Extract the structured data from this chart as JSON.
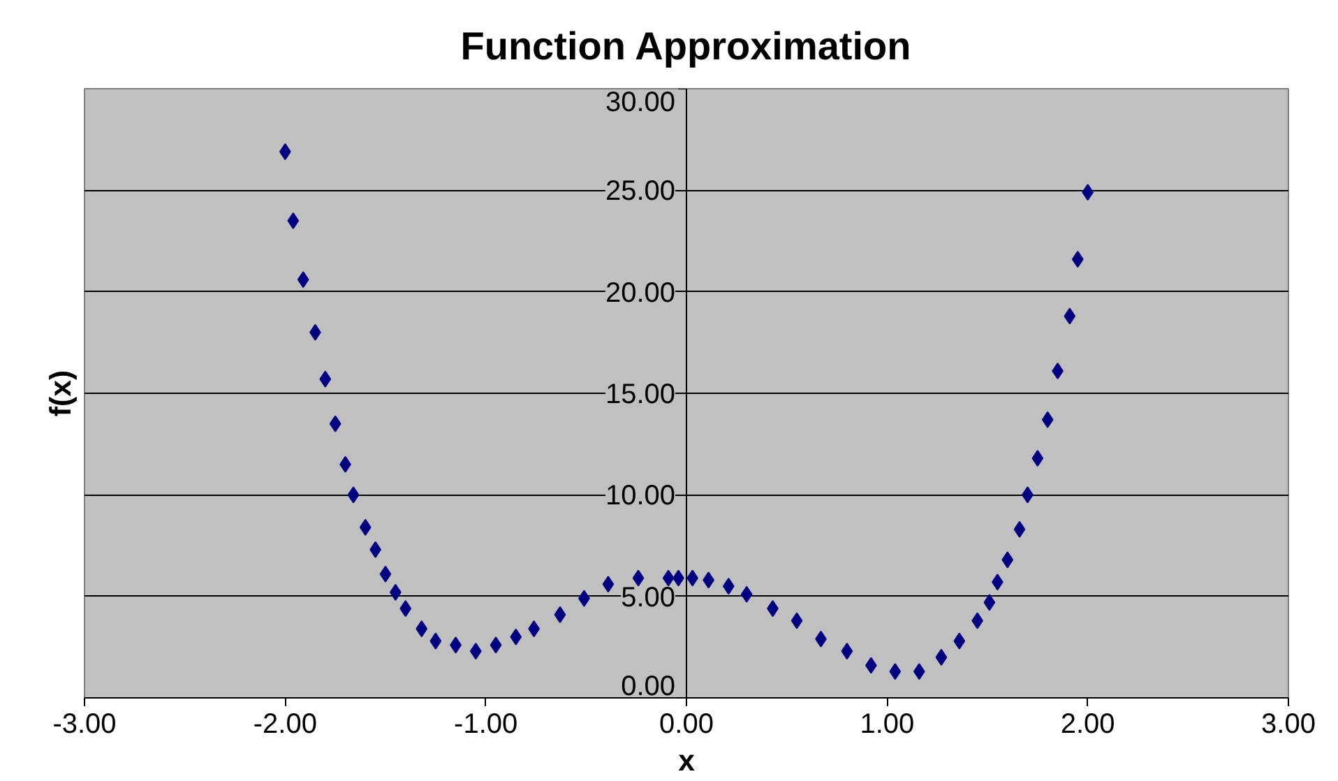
{
  "chart_data": {
    "type": "scatter",
    "title": "Function Approximation",
    "xlabel": "x",
    "ylabel": "f(x)",
    "x": [
      -2.0,
      -1.96,
      -1.91,
      -1.85,
      -1.8,
      -1.75,
      -1.7,
      -1.66,
      -1.6,
      -1.55,
      -1.5,
      -1.45,
      -1.4,
      -1.32,
      -1.25,
      -1.15,
      -1.05,
      -0.95,
      -0.85,
      -0.76,
      -0.63,
      -0.51,
      -0.39,
      -0.24,
      -0.09,
      -0.04,
      0.03,
      0.11,
      0.21,
      0.3,
      0.43,
      0.55,
      0.67,
      0.8,
      0.92,
      1.04,
      1.16,
      1.27,
      1.36,
      1.45,
      1.51,
      1.55,
      1.6,
      1.66,
      1.7,
      1.75,
      1.8,
      1.85,
      1.91,
      1.95,
      2.0
    ],
    "series": [
      {
        "color": "#000080",
        "values": [
          26.9,
          23.5,
          20.6,
          18.0,
          15.7,
          13.5,
          11.5,
          10.0,
          8.4,
          7.3,
          6.1,
          5.2,
          4.4,
          3.4,
          2.8,
          2.6,
          2.3,
          2.6,
          3.0,
          3.4,
          4.1,
          4.9,
          5.6,
          5.9,
          5.9,
          5.9,
          5.9,
          5.8,
          5.5,
          5.1,
          4.4,
          3.8,
          2.9,
          2.3,
          1.6,
          1.3,
          1.3,
          2.0,
          2.8,
          3.8,
          4.7,
          5.7,
          6.8,
          8.3,
          10.0,
          11.8,
          13.7,
          16.1,
          18.8,
          21.6,
          24.9
        ]
      }
    ],
    "xlim": [
      -3,
      3
    ],
    "ylim": [
      0,
      30
    ],
    "xticks": [
      {
        "value": -3,
        "label": "-3.00"
      },
      {
        "value": -2,
        "label": "-2.00"
      },
      {
        "value": -1,
        "label": "-1.00"
      },
      {
        "value": 0,
        "label": "0.00"
      },
      {
        "value": 1,
        "label": "1.00"
      },
      {
        "value": 2,
        "label": "2.00"
      },
      {
        "value": 3,
        "label": "3.00"
      }
    ],
    "yticks": [
      {
        "value": 0,
        "label": "0.00"
      },
      {
        "value": 5,
        "label": "5.00"
      },
      {
        "value": 10,
        "label": "10.00"
      },
      {
        "value": 15,
        "label": "15.00"
      },
      {
        "value": 20,
        "label": "20.00"
      },
      {
        "value": 25,
        "label": "25.00"
      },
      {
        "value": 30,
        "label": "30.00"
      }
    ],
    "grid": "y",
    "marker": "diamond"
  }
}
